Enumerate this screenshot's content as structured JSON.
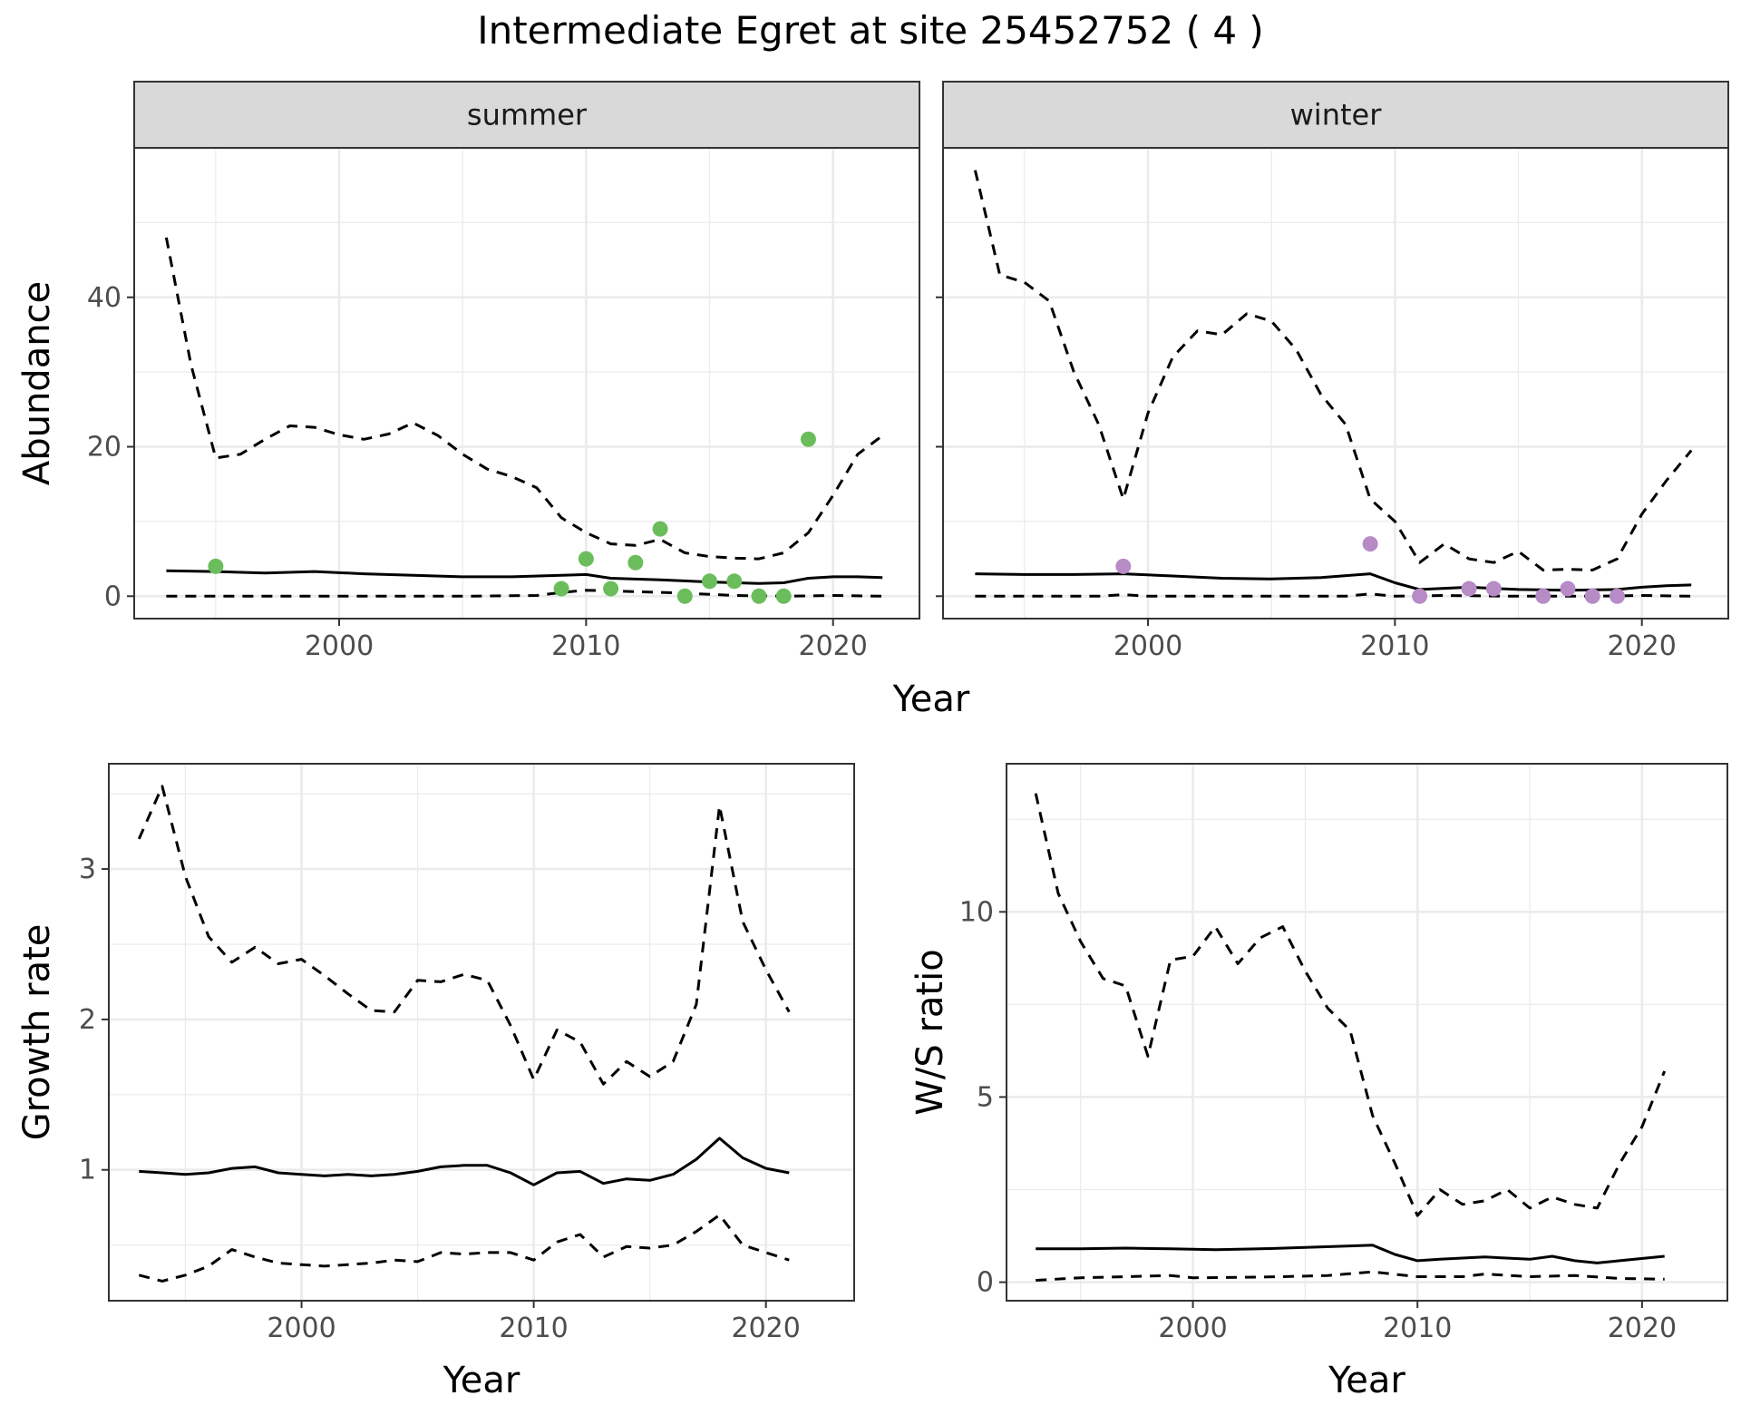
{
  "title": "Intermediate Egret at site 25452752 ( 4 )",
  "colors": {
    "summer_points": "#6bbd5c",
    "winter_points": "#b68bc6",
    "lines": "#000000",
    "strip_fill": "#d9d9d9",
    "grid": "#ebebeb"
  },
  "chart_data": [
    {
      "type": "line",
      "panel": "summer",
      "strip": "summer",
      "xlabel": "Year",
      "ylabel": "Abundance",
      "xlim": [
        1991.7,
        2023.5
      ],
      "ylim": [
        -3,
        60
      ],
      "x_ticks": [
        2000,
        2010,
        2020
      ],
      "y_ticks": [
        0,
        20,
        40
      ],
      "grid": true,
      "series": [
        {
          "role": "estimate",
          "style": "solid",
          "x": [
            1993,
            1995,
            1997,
            1999,
            2001,
            2003,
            2005,
            2007,
            2009,
            2010,
            2011,
            2013,
            2015,
            2017,
            2018,
            2019,
            2020,
            2021,
            2022
          ],
          "y": [
            3.4,
            3.3,
            3.1,
            3.3,
            3.0,
            2.8,
            2.6,
            2.6,
            2.8,
            2.9,
            2.4,
            2.2,
            1.9,
            1.7,
            1.8,
            2.4,
            2.6,
            2.6,
            2.5
          ]
        },
        {
          "role": "upper",
          "style": "dashed",
          "x": [
            1993,
            1994,
            1995,
            1996,
            1997,
            1998,
            1999,
            2000,
            2001,
            2002,
            2003,
            2004,
            2005,
            2006,
            2007,
            2008,
            2009,
            2010,
            2011,
            2012,
            2013,
            2014,
            2015,
            2016,
            2017,
            2018,
            2019,
            2020,
            2021,
            2022
          ],
          "y": [
            48,
            31,
            18.5,
            19,
            21,
            22.8,
            22.6,
            21.6,
            21,
            21.7,
            23.2,
            21.5,
            19,
            17,
            16,
            14.5,
            10.5,
            8.5,
            7,
            6.8,
            7.6,
            5.8,
            5.3,
            5.1,
            5.0,
            5.8,
            8.5,
            13.5,
            19,
            21.5
          ]
        },
        {
          "role": "lower",
          "style": "dashed",
          "x": [
            1993,
            2000,
            2005,
            2008,
            2009,
            2010,
            2012,
            2014,
            2016,
            2018,
            2020,
            2022
          ],
          "y": [
            0,
            0,
            0,
            0.1,
            0.5,
            0.8,
            0.6,
            0.4,
            0.1,
            0,
            0.1,
            0
          ]
        },
        {
          "role": "observed",
          "style": "points",
          "x": [
            1995,
            2009,
            2010,
            2011,
            2012,
            2013,
            2014,
            2015,
            2016,
            2017,
            2018,
            2019
          ],
          "y": [
            4,
            1,
            5,
            1,
            4.5,
            9,
            0,
            2,
            2,
            0,
            0,
            21
          ]
        }
      ]
    },
    {
      "type": "line",
      "panel": "winter",
      "strip": "winter",
      "xlabel": "Year",
      "ylabel": "Abundance",
      "xlim": [
        1991.7,
        2023.5
      ],
      "ylim": [
        -3,
        60
      ],
      "x_ticks": [
        2000,
        2010,
        2020
      ],
      "y_ticks": [
        0,
        20,
        40
      ],
      "grid": true,
      "series": [
        {
          "role": "estimate",
          "style": "solid",
          "x": [
            1993,
            1995,
            1997,
            1999,
            2001,
            2003,
            2005,
            2007,
            2009,
            2010,
            2011,
            2013,
            2015,
            2017,
            2019,
            2020,
            2021,
            2022
          ],
          "y": [
            3.0,
            2.9,
            2.9,
            3.0,
            2.7,
            2.4,
            2.3,
            2.5,
            3.0,
            1.8,
            0.9,
            1.2,
            0.9,
            0.8,
            0.9,
            1.2,
            1.4,
            1.5
          ]
        },
        {
          "role": "upper",
          "style": "dashed",
          "x": [
            1993,
            1994,
            1995,
            1996,
            1997,
            1998,
            1999,
            2000,
            2001,
            2002,
            2003,
            2004,
            2005,
            2006,
            2007,
            2008,
            2009,
            2010,
            2011,
            2012,
            2013,
            2014,
            2015,
            2016,
            2017,
            2018,
            2019,
            2020,
            2021,
            2022
          ],
          "y": [
            57,
            43,
            42,
            39.5,
            30,
            23,
            13,
            24.5,
            32,
            35.5,
            35,
            37.8,
            36.8,
            33,
            27,
            23,
            13,
            10,
            4.5,
            7,
            5,
            4.5,
            6,
            3.5,
            3.6,
            3.5,
            5,
            11,
            15.5,
            19.5
          ]
        },
        {
          "role": "lower",
          "style": "dashed",
          "x": [
            1993,
            1998,
            1999,
            2000,
            2008,
            2009,
            2010,
            2012,
            2015,
            2018,
            2020,
            2022
          ],
          "y": [
            0,
            0,
            0.2,
            0,
            0,
            0.3,
            0,
            0.1,
            0,
            0,
            0.1,
            0
          ]
        },
        {
          "role": "observed",
          "style": "points",
          "x": [
            1999,
            2009,
            2011,
            2013,
            2014,
            2016,
            2017,
            2018,
            2019
          ],
          "y": [
            4,
            7,
            0,
            1,
            1,
            0,
            1,
            0,
            0
          ]
        }
      ]
    },
    {
      "type": "line",
      "panel": "growth",
      "xlabel": "Year",
      "ylabel": "Growth rate",
      "xlim": [
        1991.7,
        2023.8
      ],
      "ylim": [
        0.13,
        3.7
      ],
      "x_ticks": [
        2000,
        2010,
        2020
      ],
      "y_ticks": [
        1,
        2,
        3
      ],
      "grid": true,
      "series": [
        {
          "role": "estimate",
          "style": "solid",
          "x": [
            1993,
            1994,
            1995,
            1996,
            1997,
            1998,
            1999,
            2000,
            2001,
            2002,
            2003,
            2004,
            2005,
            2006,
            2007,
            2008,
            2009,
            2010,
            2011,
            2012,
            2013,
            2014,
            2015,
            2016,
            2017,
            2018,
            2019,
            2020,
            2021
          ],
          "y": [
            0.99,
            0.98,
            0.97,
            0.98,
            1.01,
            1.02,
            0.98,
            0.97,
            0.96,
            0.97,
            0.96,
            0.97,
            0.99,
            1.02,
            1.03,
            1.03,
            0.98,
            0.9,
            0.98,
            0.99,
            0.91,
            0.94,
            0.93,
            0.97,
            1.07,
            1.21,
            1.08,
            1.01,
            0.98
          ]
        },
        {
          "role": "upper",
          "style": "dashed",
          "x": [
            1993,
            1994,
            1995,
            1996,
            1997,
            1998,
            1999,
            2000,
            2001,
            2002,
            2003,
            2004,
            2005,
            2006,
            2007,
            2008,
            2009,
            2010,
            2011,
            2012,
            2013,
            2014,
            2015,
            2016,
            2017,
            2018,
            2019,
            2020,
            2021
          ],
          "y": [
            3.2,
            3.55,
            2.95,
            2.55,
            2.38,
            2.48,
            2.37,
            2.4,
            2.29,
            2.17,
            2.06,
            2.05,
            2.26,
            2.25,
            2.3,
            2.26,
            1.96,
            1.6,
            1.93,
            1.85,
            1.57,
            1.72,
            1.62,
            1.72,
            2.1,
            3.42,
            2.65,
            2.33,
            2.05
          ]
        },
        {
          "role": "lower",
          "style": "dashed",
          "x": [
            1993,
            1994,
            1995,
            1996,
            1997,
            1998,
            1999,
            2000,
            2001,
            2002,
            2003,
            2004,
            2005,
            2006,
            2007,
            2008,
            2009,
            2010,
            2011,
            2012,
            2013,
            2014,
            2015,
            2016,
            2017,
            2018,
            2019,
            2020,
            2021
          ],
          "y": [
            0.3,
            0.26,
            0.3,
            0.36,
            0.47,
            0.42,
            0.38,
            0.37,
            0.36,
            0.37,
            0.38,
            0.4,
            0.39,
            0.45,
            0.44,
            0.45,
            0.45,
            0.4,
            0.52,
            0.57,
            0.42,
            0.49,
            0.48,
            0.5,
            0.59,
            0.7,
            0.5,
            0.45,
            0.4
          ]
        }
      ]
    },
    {
      "type": "line",
      "panel": "ws_ratio",
      "xlabel": "Year",
      "ylabel": "W/S ratio",
      "xlim": [
        1991.7,
        2023.8
      ],
      "ylim": [
        -0.5,
        14
      ],
      "x_ticks": [
        2000,
        2010,
        2020
      ],
      "y_ticks": [
        0,
        5,
        10
      ],
      "grid": true,
      "series": [
        {
          "role": "estimate",
          "style": "solid",
          "x": [
            1993,
            1995,
            1997,
            1999,
            2001,
            2003,
            2005,
            2007,
            2008,
            2009,
            2010,
            2011,
            2013,
            2015,
            2016,
            2017,
            2018,
            2019,
            2021
          ],
          "y": [
            0.9,
            0.9,
            0.92,
            0.9,
            0.88,
            0.9,
            0.94,
            0.98,
            1.0,
            0.75,
            0.58,
            0.62,
            0.68,
            0.62,
            0.7,
            0.58,
            0.52,
            0.58,
            0.7
          ]
        },
        {
          "role": "upper",
          "style": "dashed",
          "x": [
            1993,
            1994,
            1995,
            1996,
            1997,
            1998,
            1999,
            2000,
            2001,
            2002,
            2003,
            2004,
            2005,
            2006,
            2007,
            2008,
            2009,
            2010,
            2011,
            2012,
            2013,
            2014,
            2015,
            2016,
            2017,
            2018,
            2019,
            2020,
            2021
          ],
          "y": [
            13.2,
            10.5,
            9.2,
            8.2,
            8.0,
            6.1,
            8.7,
            8.8,
            9.6,
            8.6,
            9.3,
            9.6,
            8.4,
            7.4,
            6.8,
            4.5,
            3.2,
            1.8,
            2.5,
            2.1,
            2.2,
            2.5,
            2.0,
            2.3,
            2.1,
            2.0,
            3.2,
            4.2,
            5.7
          ]
        },
        {
          "role": "lower",
          "style": "dashed",
          "x": [
            1993,
            1995,
            1997,
            1999,
            2000,
            2002,
            2004,
            2006,
            2008,
            2010,
            2012,
            2013,
            2015,
            2017,
            2019,
            2021
          ],
          "y": [
            0.05,
            0.12,
            0.15,
            0.18,
            0.12,
            0.13,
            0.15,
            0.18,
            0.28,
            0.15,
            0.15,
            0.22,
            0.15,
            0.18,
            0.1,
            0.08
          ]
        }
      ]
    }
  ]
}
